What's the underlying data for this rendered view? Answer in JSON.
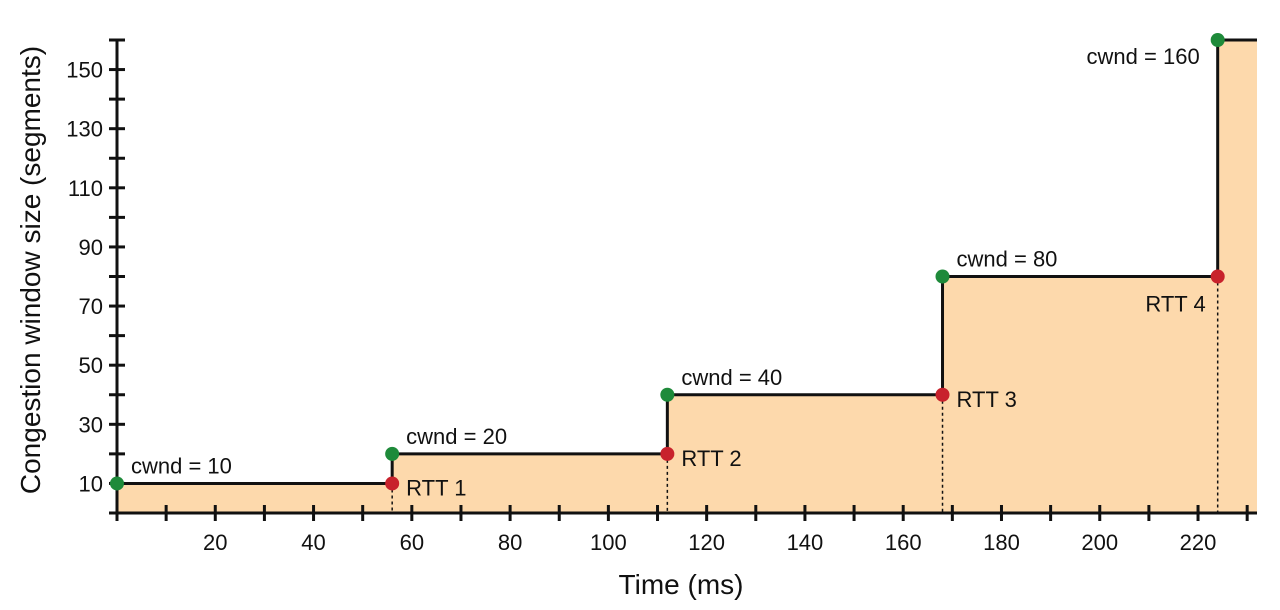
{
  "chart_data": {
    "type": "line",
    "subtype": "step",
    "xlabel": "Time (ms)",
    "ylabel": "Congestion window size (segments)",
    "xlim": [
      0,
      232
    ],
    "ylim": [
      0,
      160
    ],
    "x_ticks": [
      20,
      40,
      60,
      80,
      100,
      120,
      140,
      160,
      180,
      200,
      220
    ],
    "y_ticks": [
      10,
      30,
      50,
      70,
      90,
      110,
      130,
      150
    ],
    "series": [
      {
        "name": "cwnd",
        "x": [
          0,
          56,
          56,
          112,
          112,
          168,
          168,
          224,
          224,
          232
        ],
        "y": [
          10,
          10,
          20,
          20,
          40,
          40,
          80,
          80,
          160,
          160
        ]
      }
    ],
    "increase_points": [
      {
        "x": 0,
        "y": 10,
        "label": "cwnd = 10"
      },
      {
        "x": 56,
        "y": 20,
        "label": "cwnd = 20"
      },
      {
        "x": 112,
        "y": 40,
        "label": "cwnd = 40"
      },
      {
        "x": 168,
        "y": 80,
        "label": "cwnd = 80"
      },
      {
        "x": 224,
        "y": 160,
        "label": "cwnd = 160"
      }
    ],
    "rtt_points": [
      {
        "x": 56,
        "y": 10,
        "label": "RTT 1"
      },
      {
        "x": 112,
        "y": 20,
        "label": "RTT 2"
      },
      {
        "x": 168,
        "y": 40,
        "label": "RTT 3"
      },
      {
        "x": 224,
        "y": 80,
        "label": "RTT 4"
      }
    ],
    "colors": {
      "fill": "#fdd9ac",
      "line": "#111111",
      "increase_point": "#1e8a3a",
      "rtt_point": "#c8222c"
    }
  }
}
